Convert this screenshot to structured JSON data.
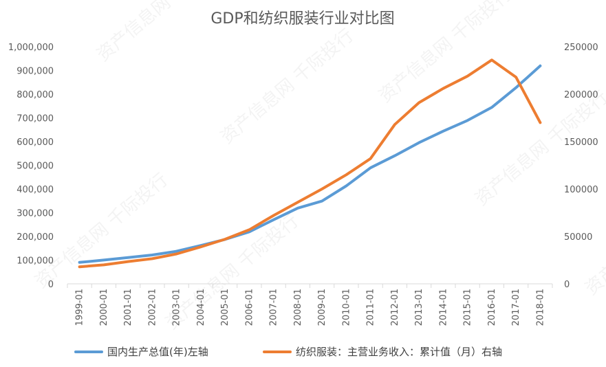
{
  "chart_data": {
    "type": "line",
    "title": "GDP和纺织服装行业对比图",
    "categories": [
      "1999-01",
      "2000-01",
      "2001-01",
      "2002-01",
      "2003-01",
      "2004-01",
      "2005-01",
      "2006-01",
      "2007-01",
      "2008-01",
      "2009-01",
      "2010-01",
      "2011-01",
      "2012-01",
      "2013-01",
      "2014-01",
      "2015-01",
      "2016-01",
      "2017-01",
      "2018-01"
    ],
    "left_axis": {
      "ylim": [
        0,
        1000000
      ],
      "ticks": [
        "0",
        "100,000",
        "200,000",
        "300,000",
        "400,000",
        "500,000",
        "600,000",
        "700,000",
        "800,000",
        "900,000",
        "1,000,000"
      ]
    },
    "right_axis": {
      "ylim": [
        0,
        250000
      ],
      "ticks": [
        "0",
        "50000",
        "100000",
        "150000",
        "200000",
        "250000"
      ]
    },
    "series": [
      {
        "name": "国内生产总值(年)左轴",
        "axis": "left",
        "color": "#5B9BD5",
        "values": [
          90564,
          100280,
          110863,
          121717,
          137422,
          161840,
          187319,
          219439,
          270232,
          319516,
          349081,
          413030,
          489301,
          540367,
          595244,
          643974,
          689052,
          744127,
          827122,
          919281
        ]
      },
      {
        "name": "纺织服装：主营业务收入：累计值（月）右轴",
        "axis": "right",
        "color": "#ED7D31",
        "values": [
          18000,
          20000,
          23500,
          26500,
          31500,
          39000,
          47000,
          57000,
          72000,
          86000,
          100000,
          115000,
          132000,
          168000,
          191000,
          206000,
          219000,
          236000,
          218000,
          170000
        ]
      }
    ],
    "legend_position": "bottom",
    "grid": false
  },
  "watermark": "资产信息网 千际投行"
}
